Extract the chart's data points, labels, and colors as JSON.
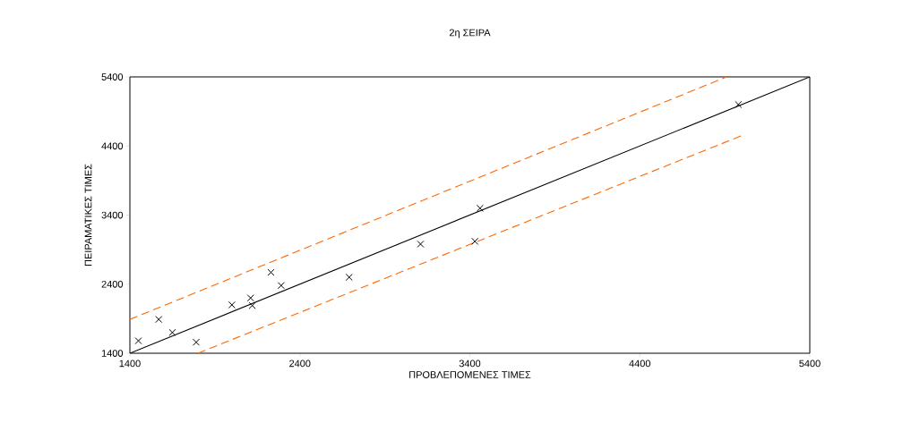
{
  "chart_data": {
    "type": "scatter",
    "title": "2η ΣΕΙΡΑ",
    "xlabel": "ΠΡΟΒΛΕΠΟΜΕΝΕΣ ΤΙΜΕΣ",
    "ylabel": "ΠΕΙΡΑΜΑΤΙΚΕΣ ΤΙΜΕΣ",
    "xlim": [
      1400,
      5400
    ],
    "ylim": [
      1400,
      5400
    ],
    "xticks": [
      1400,
      2400,
      3400,
      4400,
      5400
    ],
    "yticks": [
      1400,
      2400,
      3400,
      4400,
      5400
    ],
    "grid": false,
    "series": [
      {
        "color": "#000000",
        "marker": "cross",
        "x": [
          1450,
          1570,
          1650,
          1790,
          2000,
          2110,
          2120,
          2230,
          2290,
          2690,
          3110,
          3430,
          3460,
          4980
        ],
        "values": [
          1580,
          1890,
          1700,
          1560,
          2100,
          2200,
          2090,
          2570,
          2380,
          2500,
          2980,
          3020,
          3500,
          5000
        ]
      },
      {
        "type": "line",
        "color": "#000000",
        "line_style": "solid",
        "x": [
          1400,
          5400
        ],
        "values": [
          1400,
          5400
        ]
      },
      {
        "type": "line",
        "color": "#ff6600",
        "line_style": "dashed",
        "x": [
          1400,
          4910
        ],
        "values": [
          1890,
          5400
        ]
      },
      {
        "type": "line",
        "color": "#ff6600",
        "line_style": "dashed",
        "x": [
          1800,
          5010
        ],
        "values": [
          1400,
          4560
        ]
      }
    ]
  }
}
